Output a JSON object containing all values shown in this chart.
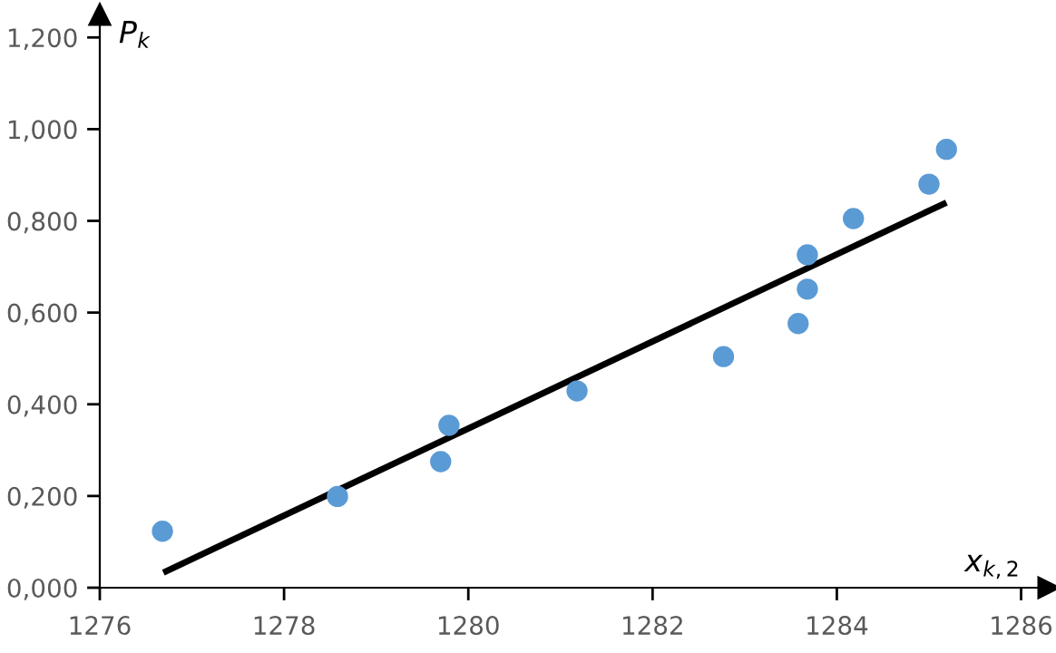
{
  "chart_data": {
    "type": "scatter",
    "xlabel": "x$_{k,2}$",
    "ylabel": "P$_{k}$",
    "xlim": [
      1276,
      1286.3
    ],
    "ylim": [
      0,
      1.25
    ],
    "xticks": [
      1276,
      1278,
      1280,
      1282,
      1284,
      1286
    ],
    "yticks": [
      {
        "value": 0,
        "label": "0,000"
      },
      {
        "value": 0.2,
        "label": "0,200"
      },
      {
        "value": 0.4,
        "label": "0,400"
      },
      {
        "value": 0.6,
        "label": "0,600"
      },
      {
        "value": 0.8,
        "label": "0,800"
      },
      {
        "value": 1.0,
        "label": "1,000"
      },
      {
        "value": 1.2,
        "label": "1,200"
      }
    ],
    "grid": false,
    "legend": false,
    "series": [
      {
        "marker": "circle",
        "color": "#5b9bd5",
        "x": [
          1276.68,
          1278.58,
          1279.7,
          1279.79,
          1281.18,
          1282.77,
          1283.58,
          1283.68,
          1283.68,
          1284.18,
          1285.0,
          1285.19
        ],
        "values": [
          0.123,
          0.199,
          0.275,
          0.354,
          0.429,
          0.504,
          0.576,
          0.651,
          0.726,
          0.805,
          0.88,
          0.956
        ]
      },
      {
        "type": "line",
        "color": "#000000",
        "x": [
          1276.69,
          1285.19
        ],
        "values": [
          0.033,
          0.84
        ]
      }
    ]
  }
}
